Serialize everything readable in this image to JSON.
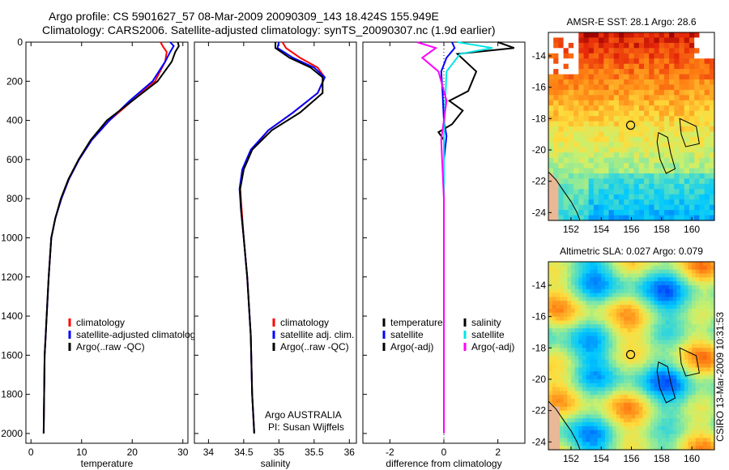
{
  "header": {
    "line1": "Argo profile: CS 5901627_57 08-Mar-2009 20090309_143 18.424S 155.949E",
    "line2": "Climatology: CARS2006. Satellite-adjusted climatology: synTS_20090307.nc (1.9d earlier)"
  },
  "colors": {
    "climatology": "#ff0000",
    "satellite": "#0000ff",
    "argo": "#000000",
    "temp_satellite": "#0000ff",
    "sal_satellite": "#00e5e5",
    "sal_argo": "#ff00ff"
  },
  "chart_data": [
    {
      "type": "line",
      "xlabel": "temperature",
      "ylabel": "",
      "xlim": [
        -1,
        31
      ],
      "ylim": [
        2050,
        0
      ],
      "xticks": [
        "0",
        "10",
        "20",
        "30"
      ],
      "xtick_values": [
        0,
        10,
        20,
        30
      ],
      "yticks": [
        "0",
        "200",
        "400",
        "600",
        "800",
        "1000",
        "1200",
        "1400",
        "1600",
        "1800",
        "2000"
      ],
      "ytick_values": [
        0,
        200,
        400,
        600,
        800,
        1000,
        1200,
        1400,
        1600,
        1800,
        2000
      ],
      "legend": [
        "climatology",
        "satellite-adjusted climatology",
        "Argo(..raw -QC)"
      ],
      "series": [
        {
          "name": "climatology",
          "color": "#ff0000",
          "x": [
            25.6,
            26.0,
            26.8,
            26.5,
            24.5,
            20.0,
            15.5,
            12.0,
            9.5,
            7.5,
            6.0,
            4.8,
            4.0,
            3.5,
            3.1,
            2.9,
            2.7,
            2.6,
            2.5
          ],
          "y": [
            0,
            20,
            50,
            100,
            200,
            300,
            400,
            500,
            600,
            700,
            800,
            900,
            1000,
            1200,
            1400,
            1500,
            1600,
            1800,
            2000
          ]
        },
        {
          "name": "satellite-adjusted climatology",
          "color": "#0000ff",
          "x": [
            27.5,
            28.2,
            27.5,
            26.5,
            24.0,
            19.5,
            15.5,
            12.0,
            9.5,
            7.5,
            6.0,
            4.8,
            4.0,
            3.5,
            3.1,
            2.9,
            2.7,
            2.6,
            2.5
          ],
          "y": [
            0,
            20,
            50,
            100,
            200,
            300,
            400,
            500,
            600,
            700,
            800,
            900,
            1000,
            1200,
            1400,
            1500,
            1600,
            1800,
            2000
          ]
        },
        {
          "name": "Argo(..raw -QC)",
          "color": "#000000",
          "x": [
            29.0,
            29.2,
            28.5,
            27.8,
            25.0,
            20.0,
            15.0,
            11.8,
            9.4,
            7.4,
            5.9,
            4.8,
            4.0,
            3.5,
            3.1,
            2.9,
            2.7,
            2.6,
            2.5
          ],
          "y": [
            0,
            20,
            50,
            100,
            200,
            300,
            400,
            500,
            600,
            700,
            800,
            900,
            1000,
            1200,
            1400,
            1500,
            1600,
            1800,
            2000
          ]
        }
      ]
    },
    {
      "type": "line",
      "xlabel": "salinity",
      "xlim": [
        33.8,
        36.1
      ],
      "ylim": [
        2050,
        0
      ],
      "xticks": [
        "34",
        "34.5",
        "35",
        "35.5",
        "36"
      ],
      "xtick_values": [
        34,
        34.5,
        35,
        35.5,
        36
      ],
      "legend": [
        "climatology",
        "satellite adj. clim.",
        "Argo(..raw -QC)"
      ],
      "series": [
        {
          "name": "climatology",
          "color": "#ff0000",
          "x": [
            35.05,
            35.1,
            35.3,
            35.55,
            35.65,
            35.55,
            35.2,
            34.85,
            34.62,
            34.5,
            34.45,
            34.47,
            34.5,
            34.55,
            34.6,
            34.62,
            34.65
          ],
          "y": [
            0,
            30,
            80,
            130,
            180,
            260,
            360,
            450,
            550,
            650,
            750,
            850,
            1000,
            1200,
            1500,
            1800,
            2000
          ]
        },
        {
          "name": "satellite adj. clim.",
          "color": "#0000ff",
          "x": [
            35.0,
            34.98,
            35.2,
            35.5,
            35.65,
            35.55,
            35.2,
            34.85,
            34.6,
            34.48,
            34.44,
            34.46,
            34.5,
            34.55,
            34.6,
            34.62,
            34.65
          ],
          "y": [
            0,
            30,
            80,
            130,
            180,
            260,
            360,
            450,
            550,
            650,
            750,
            850,
            1000,
            1200,
            1500,
            1800,
            2000
          ]
        },
        {
          "name": "Argo(..raw -QC)",
          "color": "#000000",
          "x": [
            34.95,
            34.95,
            35.15,
            35.45,
            35.62,
            35.62,
            35.3,
            34.9,
            34.62,
            34.5,
            34.45,
            34.46,
            34.5,
            34.55,
            34.6,
            34.62,
            34.65
          ],
          "y": [
            0,
            30,
            80,
            130,
            180,
            260,
            360,
            450,
            550,
            650,
            750,
            850,
            1000,
            1200,
            1500,
            1800,
            2000
          ]
        }
      ],
      "annotation": [
        "Argo AUSTRALIA",
        "PI: Susan Wijffels"
      ]
    },
    {
      "type": "line",
      "xlabel": "difference from climatology",
      "xlim": [
        -3,
        3
      ],
      "ylim": [
        2050,
        0
      ],
      "xticks": [
        "-2",
        "0",
        "2"
      ],
      "xtick_values": [
        -2,
        0,
        2
      ],
      "legend_left": [
        "temperature",
        "satellite",
        "Argo(-adj)"
      ],
      "legend_right": [
        "salinity",
        "satellite",
        "Argo(-adj)"
      ],
      "series": [
        {
          "name": "temperature satellite",
          "color": "#0000ff",
          "x": [
            0.3,
            0.4,
            0.1,
            -0.1,
            -0.05,
            0.0,
            0.1,
            0.0,
            0.0,
            0.0,
            0.0,
            0.0,
            0.0,
            0.0
          ],
          "y": [
            0,
            30,
            80,
            150,
            250,
            400,
            480,
            600,
            800,
            1000,
            1200,
            1500,
            1800,
            2000
          ]
        },
        {
          "name": "temperature Argo(-adj)",
          "color": "#000000",
          "x": [
            2.0,
            2.6,
            0.5,
            1.2,
            0.9,
            0.2,
            0.7,
            0.3,
            -0.2,
            0.0,
            0.0,
            0.0,
            0.0,
            0.0,
            0.0
          ],
          "y": [
            0,
            30,
            60,
            150,
            250,
            300,
            350,
            420,
            460,
            500,
            700,
            1000,
            1400,
            1800,
            2000
          ]
        },
        {
          "name": "salinity satellite",
          "color": "#00e5e5",
          "x": [
            0.5,
            1.8,
            0.6,
            0.1,
            0.05,
            0.0,
            0.0,
            0.0,
            0.0,
            0.0
          ],
          "y": [
            0,
            30,
            60,
            150,
            300,
            500,
            800,
            1200,
            1600,
            2000
          ]
        },
        {
          "name": "salinity Argo(-adj)",
          "color": "#ff00ff",
          "x": [
            -1.0,
            -0.3,
            -0.8,
            -0.2,
            0.1,
            -0.1,
            0.0,
            0.0,
            0.0,
            0.0
          ],
          "y": [
            0,
            30,
            80,
            150,
            300,
            500,
            800,
            1200,
            1600,
            2000
          ]
        }
      ]
    },
    {
      "type": "heatmap",
      "title": "AMSR-E SST: 28.1 Argo: 28.6",
      "xlim": [
        150.5,
        161.5
      ],
      "ylim": [
        -24.5,
        -12.5
      ],
      "xticks": [
        "152",
        "154",
        "156",
        "158",
        "160"
      ],
      "xtick_values": [
        152,
        154,
        156,
        158,
        160
      ],
      "yticks": [
        "-14",
        "-16",
        "-18",
        "-20",
        "-22",
        "-24"
      ],
      "ytick_values": [
        -14,
        -16,
        -18,
        -20,
        -22,
        -24
      ],
      "argo_position": [
        155.949,
        -18.424
      ]
    },
    {
      "type": "heatmap",
      "title": "Altimetric SLA: 0.027 Argo: 0.079",
      "xlim": [
        150.5,
        161.5
      ],
      "ylim": [
        -24.5,
        -12.5
      ],
      "xticks": [
        "152",
        "154",
        "156",
        "158",
        "160"
      ],
      "xtick_values": [
        152,
        154,
        156,
        158,
        160
      ],
      "yticks": [
        "-14",
        "-16",
        "-18",
        "-20",
        "-22",
        "-24"
      ],
      "ytick_values": [
        -14,
        -16,
        -18,
        -20,
        -22,
        -24
      ],
      "argo_position": [
        155.949,
        -18.424
      ]
    }
  ],
  "stamp": "CSIRO 13-Mar-2009 10:31:53"
}
